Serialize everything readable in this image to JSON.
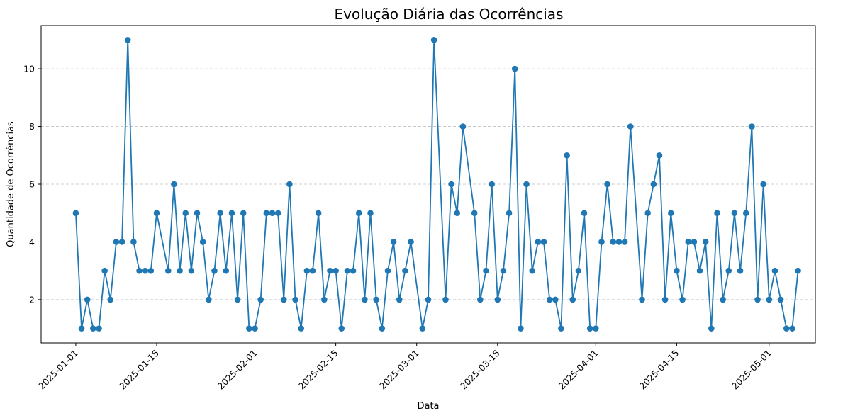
{
  "chart_data": {
    "type": "line",
    "title": "Evolução Diária das Ocorrências",
    "xlabel": "Data",
    "ylabel": "Quantidade de Ocorrências",
    "x_tick_labels": [
      "2025-01-01",
      "2025-01-15",
      "2025-02-01",
      "2025-02-15",
      "2025-03-01",
      "2025-03-15",
      "2025-04-01",
      "2025-04-15",
      "2025-05-01"
    ],
    "y_ticks": [
      2,
      4,
      6,
      8,
      10
    ],
    "ylim": [
      0.5,
      11.5
    ],
    "xlim": [
      "2024-12-26",
      "2025-05-09"
    ],
    "grid": "y-dashed",
    "marker": "circle",
    "color": "#1f77b4",
    "series": [
      {
        "points": [
          [
            "2025-01-01",
            5
          ],
          [
            "2025-01-02",
            1
          ],
          [
            "2025-01-03",
            2
          ],
          [
            "2025-01-04",
            1
          ],
          [
            "2025-01-05",
            1
          ],
          [
            "2025-01-06",
            3
          ],
          [
            "2025-01-07",
            2
          ],
          [
            "2025-01-08",
            4
          ],
          [
            "2025-01-09",
            4
          ],
          [
            "2025-01-10",
            11
          ],
          [
            "2025-01-11",
            4
          ],
          [
            "2025-01-12",
            3
          ],
          [
            "2025-01-13",
            3
          ],
          [
            "2025-01-14",
            3
          ],
          [
            "2025-01-15",
            5
          ],
          [
            "2025-01-17",
            3
          ],
          [
            "2025-01-18",
            6
          ],
          [
            "2025-01-19",
            3
          ],
          [
            "2025-01-20",
            5
          ],
          [
            "2025-01-21",
            3
          ],
          [
            "2025-01-22",
            5
          ],
          [
            "2025-01-23",
            4
          ],
          [
            "2025-01-24",
            2
          ],
          [
            "2025-01-25",
            3
          ],
          [
            "2025-01-26",
            5
          ],
          [
            "2025-01-27",
            3
          ],
          [
            "2025-01-28",
            5
          ],
          [
            "2025-01-29",
            2
          ],
          [
            "2025-01-30",
            5
          ],
          [
            "2025-01-31",
            1
          ],
          [
            "2025-02-01",
            1
          ],
          [
            "2025-02-02",
            2
          ],
          [
            "2025-02-03",
            5
          ],
          [
            "2025-02-04",
            5
          ],
          [
            "2025-02-05",
            5
          ],
          [
            "2025-02-06",
            2
          ],
          [
            "2025-02-07",
            6
          ],
          [
            "2025-02-08",
            2
          ],
          [
            "2025-02-09",
            1
          ],
          [
            "2025-02-10",
            3
          ],
          [
            "2025-02-11",
            3
          ],
          [
            "2025-02-12",
            5
          ],
          [
            "2025-02-13",
            2
          ],
          [
            "2025-02-14",
            3
          ],
          [
            "2025-02-15",
            3
          ],
          [
            "2025-02-16",
            1
          ],
          [
            "2025-02-17",
            3
          ],
          [
            "2025-02-18",
            3
          ],
          [
            "2025-02-19",
            5
          ],
          [
            "2025-02-20",
            2
          ],
          [
            "2025-02-21",
            5
          ],
          [
            "2025-02-22",
            2
          ],
          [
            "2025-02-23",
            1
          ],
          [
            "2025-02-24",
            3
          ],
          [
            "2025-02-25",
            4
          ],
          [
            "2025-02-26",
            2
          ],
          [
            "2025-02-27",
            3
          ],
          [
            "2025-02-28",
            4
          ],
          [
            "2025-03-02",
            1
          ],
          [
            "2025-03-03",
            2
          ],
          [
            "2025-03-04",
            11
          ],
          [
            "2025-03-06",
            2
          ],
          [
            "2025-03-07",
            6
          ],
          [
            "2025-03-08",
            5
          ],
          [
            "2025-03-09",
            8
          ],
          [
            "2025-03-11",
            5
          ],
          [
            "2025-03-12",
            2
          ],
          [
            "2025-03-13",
            3
          ],
          [
            "2025-03-14",
            6
          ],
          [
            "2025-03-15",
            2
          ],
          [
            "2025-03-16",
            3
          ],
          [
            "2025-03-17",
            5
          ],
          [
            "2025-03-18",
            10
          ],
          [
            "2025-03-19",
            1
          ],
          [
            "2025-03-20",
            6
          ],
          [
            "2025-03-21",
            3
          ],
          [
            "2025-03-22",
            4
          ],
          [
            "2025-03-23",
            4
          ],
          [
            "2025-03-24",
            2
          ],
          [
            "2025-03-25",
            2
          ],
          [
            "2025-03-26",
            1
          ],
          [
            "2025-03-27",
            7
          ],
          [
            "2025-03-28",
            2
          ],
          [
            "2025-03-29",
            3
          ],
          [
            "2025-03-30",
            5
          ],
          [
            "2025-03-31",
            1
          ],
          [
            "2025-04-01",
            1
          ],
          [
            "2025-04-02",
            4
          ],
          [
            "2025-04-03",
            6
          ],
          [
            "2025-04-04",
            4
          ],
          [
            "2025-04-05",
            4
          ],
          [
            "2025-04-06",
            4
          ],
          [
            "2025-04-07",
            8
          ],
          [
            "2025-04-09",
            2
          ],
          [
            "2025-04-10",
            5
          ],
          [
            "2025-04-11",
            6
          ],
          [
            "2025-04-12",
            7
          ],
          [
            "2025-04-13",
            2
          ],
          [
            "2025-04-14",
            5
          ],
          [
            "2025-04-15",
            3
          ],
          [
            "2025-04-16",
            2
          ],
          [
            "2025-04-17",
            4
          ],
          [
            "2025-04-18",
            4
          ],
          [
            "2025-04-19",
            3
          ],
          [
            "2025-04-20",
            4
          ],
          [
            "2025-04-21",
            1
          ],
          [
            "2025-04-22",
            5
          ],
          [
            "2025-04-23",
            2
          ],
          [
            "2025-04-24",
            3
          ],
          [
            "2025-04-25",
            5
          ],
          [
            "2025-04-26",
            3
          ],
          [
            "2025-04-27",
            5
          ],
          [
            "2025-04-28",
            8
          ],
          [
            "2025-04-29",
            2
          ],
          [
            "2025-04-30",
            6
          ],
          [
            "2025-05-01",
            2
          ],
          [
            "2025-05-02",
            3
          ],
          [
            "2025-05-03",
            2
          ],
          [
            "2025-05-04",
            1
          ],
          [
            "2025-05-05",
            1
          ],
          [
            "2025-05-06",
            3
          ]
        ]
      }
    ]
  }
}
